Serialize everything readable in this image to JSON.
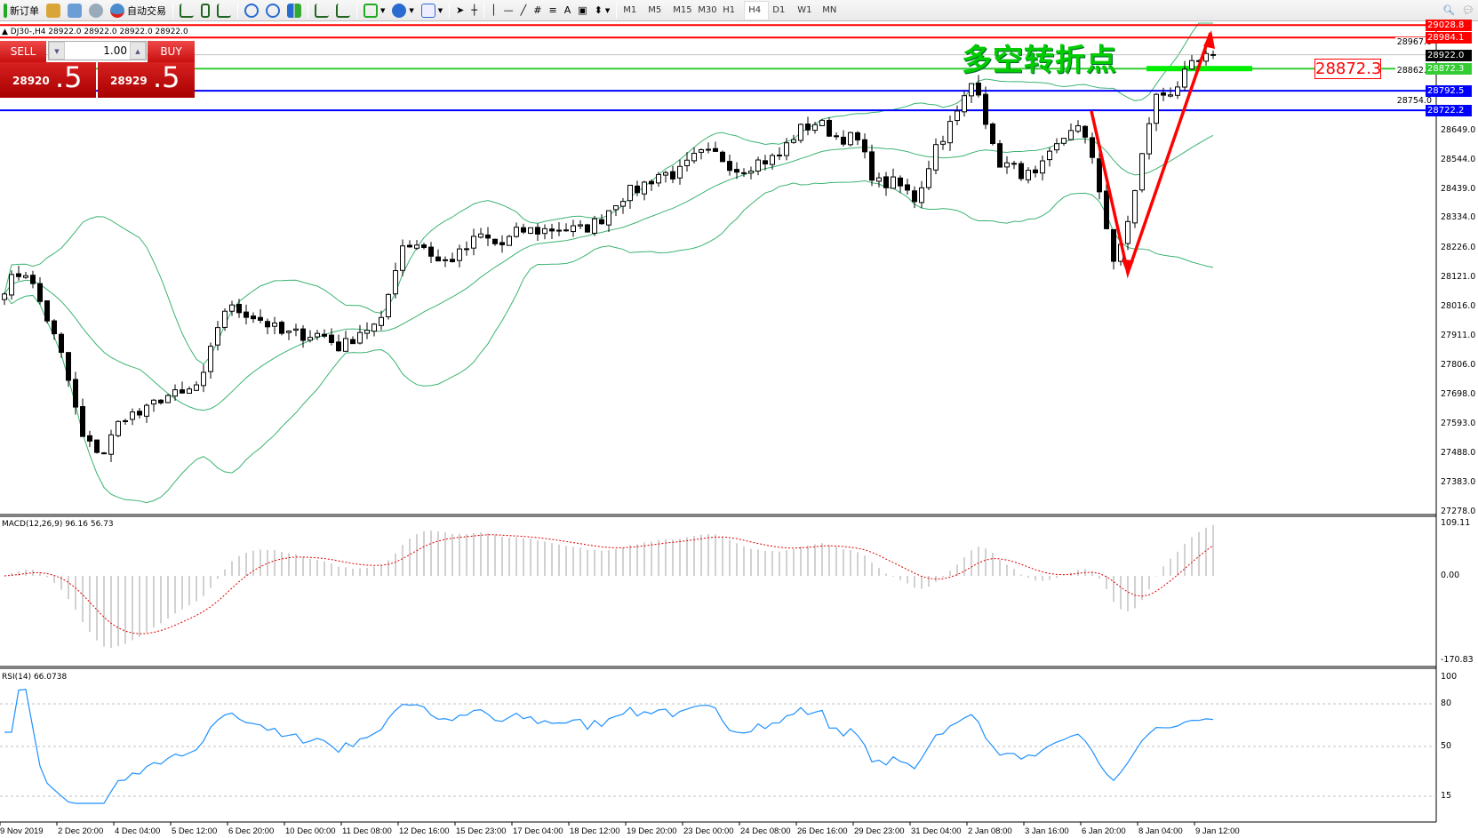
{
  "toolbar": {
    "new_order": "新订单",
    "auto_trade": "自动交易",
    "icons": [
      "new-order-icon",
      "history-icon",
      "market-watch-icon",
      "signals-icon",
      "auto-trade-icon",
      "bar-chart-icon",
      "candlestick-icon",
      "line-chart-icon",
      "zoom-in-icon",
      "zoom-out-icon",
      "tile-windows-icon",
      "auto-scroll-icon",
      "chart-shift-icon",
      "indicators-icon",
      "periods-icon",
      "templates-icon",
      "cursor-icon",
      "crosshair-icon",
      "vertical-line-icon",
      "horizontal-line-icon",
      "trendline-icon",
      "equidistant-channel-icon",
      "fibonacci-icon",
      "text-icon",
      "text-label-icon",
      "arrows-icon"
    ],
    "text_tool": "A",
    "timeframes": [
      "M1",
      "M5",
      "M15",
      "M30",
      "H1",
      "H4",
      "D1",
      "W1",
      "MN"
    ],
    "active_timeframe": "H4"
  },
  "chart": {
    "header": "DJ30-,H4  28922.0 28922.0 28922.0 28922.0",
    "annotation": "多空转折点",
    "annotation_color": "#00cc00",
    "price_box": "28872.3",
    "price_axis": [
      "28649.0",
      "28544.0",
      "28439.0",
      "28334.0",
      "28226.0",
      "28121.0",
      "28016.0",
      "27911.0",
      "27806.0",
      "27698.0",
      "27593.0",
      "27488.0",
      "27383.0",
      "27278.0",
      "28967.0",
      "28862.0",
      "28754.0"
    ],
    "levels": [
      {
        "price": "29028.8",
        "color": "#ff0000"
      },
      {
        "price": "28984.1",
        "color": "#ff0000"
      },
      {
        "price": "28922.0",
        "color": "#000000",
        "line": "#c0c0c0"
      },
      {
        "price": "28872.3",
        "color": "#33cc33"
      },
      {
        "price": "28792.5",
        "color": "#0000ff"
      },
      {
        "price": "28722.2",
        "color": "#0000ff"
      }
    ],
    "approx_closes": [
      28086,
      28153,
      28001,
      27814,
      27526,
      27492,
      27627,
      27627,
      27695,
      27695,
      27746,
      28008,
      28001,
      27967,
      27916,
      27916,
      27916,
      27865,
      27933,
      27950,
      28238,
      28245,
      28170,
      28204,
      28272,
      28231,
      28289,
      28289,
      28299,
      28289,
      28323,
      28408,
      28442,
      28493,
      28493,
      28561,
      28561,
      28510,
      28537,
      28551,
      28646,
      28680,
      28629,
      28618,
      28459,
      28459,
      28401,
      28595,
      28697,
      28849,
      28544,
      28510,
      28476,
      28578,
      28680,
      28544,
      28150,
      28408,
      28764,
      28798,
      28883,
      28922
    ]
  },
  "macd": {
    "header": "MACD(12,26,9) 96.16 56.73",
    "axis": [
      "109.11",
      "0.00",
      "-170.83"
    ]
  },
  "rsi": {
    "header": "RSI(14) 66.0738",
    "axis": [
      "100",
      "80",
      "50",
      "15"
    ]
  },
  "time_axis": [
    "9 Nov 2019",
    "2 Dec 20:00",
    "4 Dec 04:00",
    "5 Dec 12:00",
    "6 Dec 20:00",
    "10 Dec 00:00",
    "11 Dec 08:00",
    "12 Dec 16:00",
    "15 Dec 23:00",
    "17 Dec 04:00",
    "18 Dec 12:00",
    "19 Dec 20:00",
    "23 Dec 00:00",
    "24 Dec 08:00",
    "26 Dec 16:00",
    "29 Dec 23:00",
    "31 Dec 04:00",
    "2 Jan 08:00",
    "3 Jan 16:00",
    "6 Jan 20:00",
    "8 Jan 04:00",
    "9 Jan 12:00"
  ],
  "trade_panel": {
    "sell": "SELL",
    "buy": "BUY",
    "lots": "1.00",
    "bid_main": "28920",
    "bid_frac": ".5",
    "ask_main": "28929",
    "ask_frac": ".5",
    "color": "#d01818"
  }
}
